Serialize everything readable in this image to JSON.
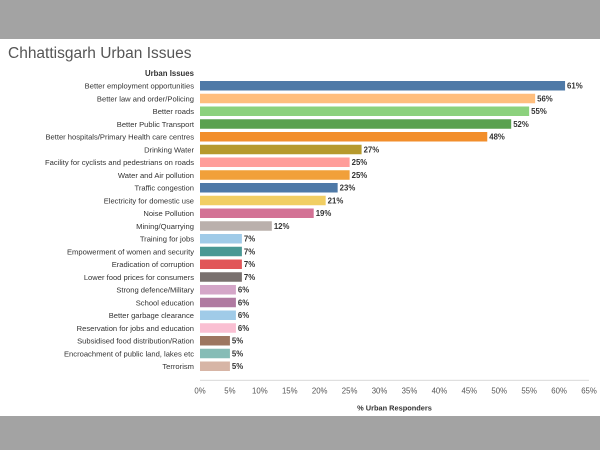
{
  "title": "Chhattisgarh Urban Issues",
  "chart_data": {
    "type": "bar",
    "orientation": "horizontal",
    "row_header": "Urban Issues",
    "xlabel": "% Urban Responders",
    "xlim": [
      0,
      65
    ],
    "ticks": [
      0,
      5,
      10,
      15,
      20,
      25,
      30,
      35,
      40,
      45,
      50,
      55,
      60,
      65
    ],
    "tick_suffix": "%",
    "grid": false,
    "categories": [
      "Better employment opportunities",
      "Better law and order/Policing",
      "Better roads",
      "Better Public Transport",
      "Better  hospitals/Primary Health care centres",
      "Drinking Water",
      "Facility for cyclists and pedestrians on roads",
      "Water and Air pollution",
      "Traffic congestion",
      "Electricity for domestic use",
      "Noise Pollution",
      "Mining/Quarrying",
      "Training for jobs",
      "Empowerment of women and security",
      "Eradication of corruption",
      "Lower food prices for consumers",
      "Strong defence/Military",
      "School education",
      "Better garbage clearance",
      "Reservation for jobs and education",
      "Subsidised food distribution/Ration",
      "Encroachment of public land, lakes etc",
      "Terrorism"
    ],
    "values": [
      61,
      56,
      55,
      52,
      48,
      27,
      25,
      25,
      23,
      21,
      19,
      12,
      7,
      7,
      7,
      7,
      6,
      6,
      6,
      6,
      5,
      5,
      5
    ],
    "colors": [
      "#4e79a7",
      "#ffbe7d",
      "#8cd17d",
      "#59a14f",
      "#f28e2b",
      "#b6992d",
      "#ff9d9a",
      "#f1a03a",
      "#4e79a7",
      "#f1ce63",
      "#d37295",
      "#bab0ac",
      "#a0cbe8",
      "#499894",
      "#e15759",
      "#79706e",
      "#d4a6c8",
      "#b07aa1",
      "#a0cbe8",
      "#fabfd2",
      "#9d7660",
      "#86bcb6",
      "#d7b5a6"
    ]
  }
}
